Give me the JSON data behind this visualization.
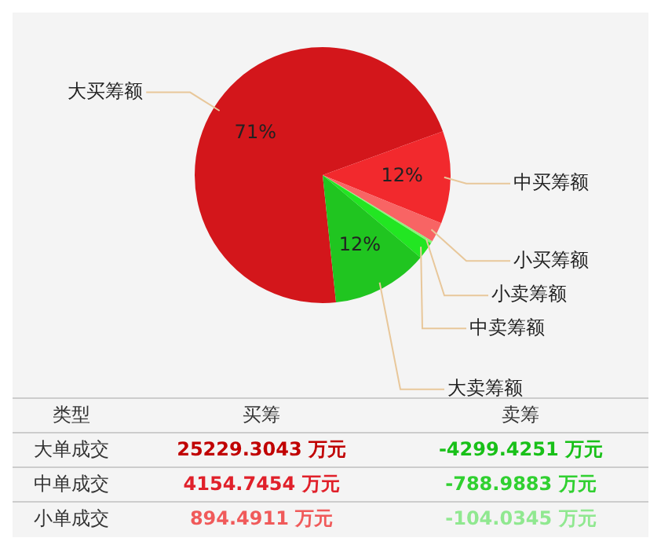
{
  "chart_data": [
    {
      "type": "pie",
      "categories": [
        "大买筹额",
        "中买筹额",
        "小买筹额",
        "小卖筹额",
        "中卖筹额",
        "大卖筹额"
      ],
      "values": [
        71.1,
        11.7,
        2.5,
        0.3,
        2.2,
        12.2
      ],
      "value_labels": [
        "71%",
        "12%",
        null,
        null,
        null,
        "12%"
      ],
      "colors": [
        "#d3161b",
        "#f2292d",
        "#f86464",
        "#8cf27a",
        "#22e622",
        "#20c520"
      ]
    },
    {
      "type": "other",
      "annotations": [
        "类型",
        "买筹",
        "卖筹",
        "大单成交",
        "25229.3043 万元",
        "-4299.4251 万元",
        "中单成交",
        "4154.7454 万元",
        "-788.9883 万元",
        "小单成交",
        "894.4911 万元",
        "-104.0345 万元"
      ]
    }
  ]
}
